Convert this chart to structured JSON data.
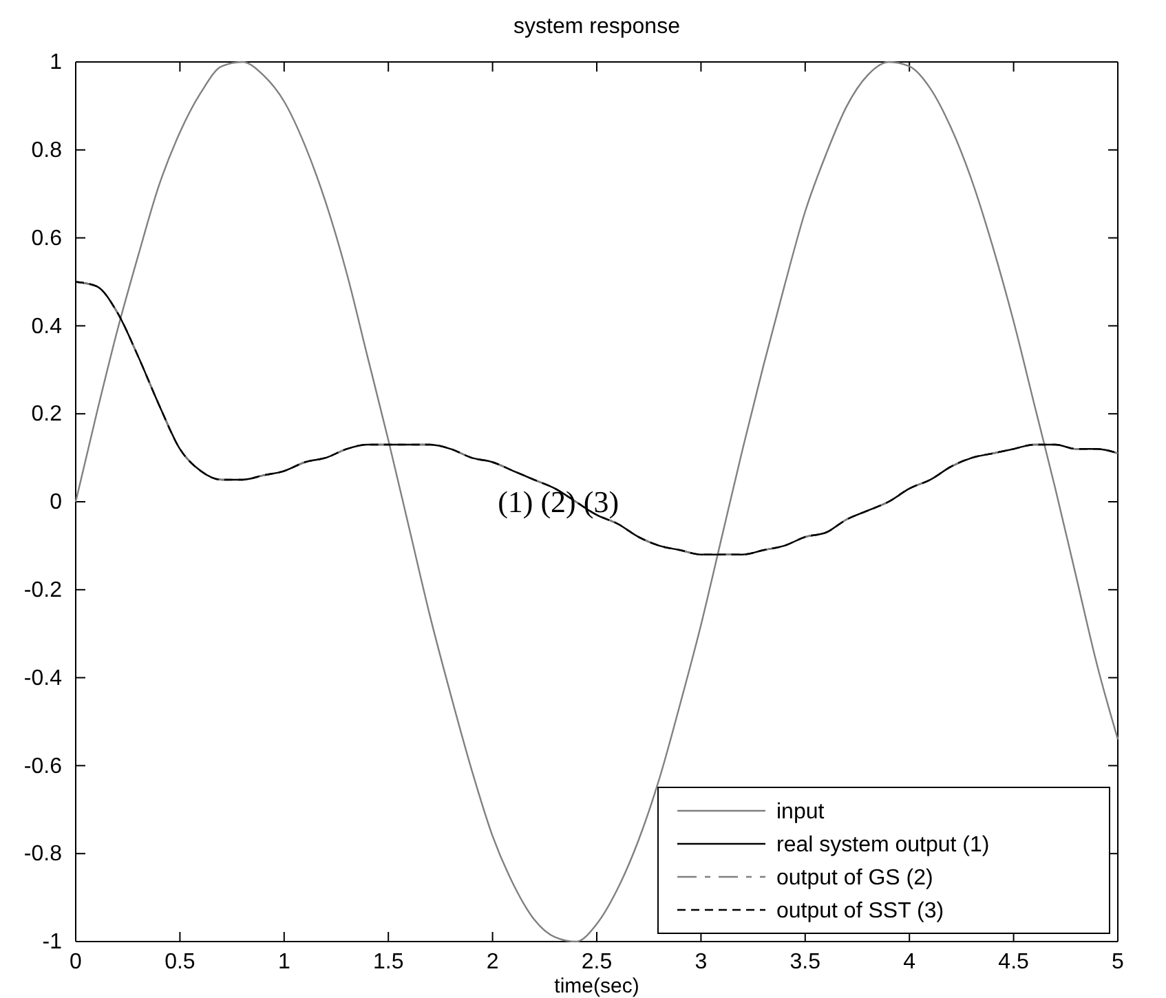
{
  "chart_data": {
    "type": "line",
    "title": "system response",
    "xlabel": "time(sec)",
    "x": [
      0,
      0.1,
      0.2,
      0.3,
      0.4,
      0.5,
      0.6,
      0.7,
      0.8,
      0.9,
      1,
      1.1,
      1.2,
      1.3,
      1.4,
      1.5,
      1.6,
      1.7,
      1.8,
      1.9,
      2,
      2.1,
      2.2,
      2.3,
      2.4,
      2.5,
      2.6,
      2.7,
      2.8,
      2.9,
      3,
      3.1,
      3.2,
      3.3,
      3.4,
      3.5,
      3.6,
      3.7,
      3.8,
      3.9,
      4,
      4.1,
      4.2,
      4.3,
      4.4,
      4.5,
      4.6,
      4.7,
      4.8,
      4.9,
      5
    ],
    "series": [
      {
        "name": "input",
        "color": "#808080",
        "line_style": "solid",
        "values": [
          0,
          0.2,
          0.39,
          0.56,
          0.72,
          0.84,
          0.93,
          0.99,
          1,
          0.97,
          0.91,
          0.81,
          0.68,
          0.52,
          0.33,
          0.14,
          -0.06,
          -0.26,
          -0.44,
          -0.61,
          -0.76,
          -0.87,
          -0.95,
          -0.99,
          -1,
          -0.96,
          -0.88,
          -0.77,
          -0.63,
          -0.46,
          -0.28,
          -0.08,
          0.12,
          0.31,
          0.49,
          0.66,
          0.79,
          0.9,
          0.97,
          1,
          0.99,
          0.94,
          0.85,
          0.73,
          0.58,
          0.41,
          0.22,
          0.03,
          -0.17,
          -0.37,
          -0.54
        ]
      },
      {
        "name": "real system output (1)",
        "color": "#000000",
        "line_style": "solid",
        "values": [
          0.5,
          0.49,
          0.43,
          0.33,
          0.22,
          0.12,
          0.07,
          0.05,
          0.05,
          0.06,
          0.07,
          0.09,
          0.1,
          0.12,
          0.13,
          0.13,
          0.13,
          0.13,
          0.12,
          0.1,
          0.09,
          0.07,
          0.05,
          0.03,
          0,
          -0.03,
          -0.05,
          -0.08,
          -0.1,
          -0.11,
          -0.12,
          -0.12,
          -0.12,
          -0.11,
          -0.1,
          -0.08,
          -0.07,
          -0.04,
          -0.02,
          0,
          0.03,
          0.05,
          0.08,
          0.1,
          0.11,
          0.12,
          0.13,
          0.13,
          0.12,
          0.12,
          0.11
        ]
      },
      {
        "name": "output of GS (2)",
        "color": "#808080",
        "line_style": "dashdot",
        "values": [
          0.5,
          0.49,
          0.43,
          0.33,
          0.22,
          0.12,
          0.07,
          0.05,
          0.05,
          0.06,
          0.07,
          0.09,
          0.1,
          0.12,
          0.13,
          0.13,
          0.13,
          0.13,
          0.12,
          0.1,
          0.09,
          0.07,
          0.05,
          0.03,
          0,
          -0.03,
          -0.05,
          -0.08,
          -0.1,
          -0.11,
          -0.12,
          -0.12,
          -0.12,
          -0.11,
          -0.1,
          -0.08,
          -0.07,
          -0.04,
          -0.02,
          0,
          0.03,
          0.05,
          0.08,
          0.1,
          0.11,
          0.12,
          0.13,
          0.13,
          0.12,
          0.12,
          0.11
        ]
      },
      {
        "name": "output of SST (3)",
        "color": "#000000",
        "line_style": "dashed",
        "values": [
          0.5,
          0.49,
          0.43,
          0.33,
          0.22,
          0.12,
          0.07,
          0.05,
          0.05,
          0.06,
          0.07,
          0.09,
          0.1,
          0.12,
          0.13,
          0.13,
          0.13,
          0.13,
          0.12,
          0.1,
          0.09,
          0.07,
          0.05,
          0.03,
          0,
          -0.03,
          -0.05,
          -0.08,
          -0.1,
          -0.11,
          -0.12,
          -0.12,
          -0.12,
          -0.11,
          -0.1,
          -0.08,
          -0.07,
          -0.04,
          -0.02,
          0,
          0.03,
          0.05,
          0.08,
          0.1,
          0.11,
          0.12,
          0.13,
          0.13,
          0.12,
          0.12,
          0.11
        ]
      }
    ],
    "xlim": [
      0,
      5
    ],
    "xticks": [
      0,
      0.5,
      1,
      1.5,
      2,
      2.5,
      3,
      3.5,
      4,
      4.5,
      5
    ],
    "ylim": [
      -1,
      1
    ],
    "yticks": [
      -1,
      -0.8,
      -0.6,
      -0.4,
      -0.2,
      0,
      0.2,
      0.4,
      0.6,
      0.8,
      1
    ],
    "annotations": [
      "(1) (2) (3)"
    ],
    "legend": "bottom right",
    "grid": false
  }
}
